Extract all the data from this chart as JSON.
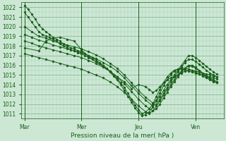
{
  "xlabel": "Pression niveau de la mer( hPa )",
  "bg_color": "#cce8d4",
  "grid_minor_color": "#aacfb8",
  "grid_major_color": "#88bb99",
  "line_color": "#1a5e1a",
  "ylim": [
    1010.5,
    1022.5
  ],
  "yticks": [
    1011,
    1012,
    1013,
    1014,
    1015,
    1016,
    1017,
    1018,
    1019,
    1020,
    1021,
    1022
  ],
  "day_labels": [
    "Mar",
    "Mer",
    "Jeu",
    "Ven"
  ],
  "day_positions": [
    0,
    96,
    192,
    288
  ],
  "xlim": [
    -5,
    335
  ],
  "lines": [
    [
      0,
      1021.5,
      6,
      1021.0,
      12,
      1020.5,
      18,
      1020.0,
      24,
      1019.5,
      30,
      1019.2,
      36,
      1019.0,
      42,
      1018.9,
      48,
      1018.7,
      54,
      1018.5,
      60,
      1018.2,
      66,
      1018.0,
      72,
      1017.8,
      78,
      1017.6,
      84,
      1017.5,
      90,
      1017.3,
      96,
      1017.2,
      102,
      1017.0,
      108,
      1016.8,
      114,
      1016.6,
      120,
      1016.4,
      126,
      1016.2,
      132,
      1016.0,
      138,
      1015.7,
      144,
      1015.4,
      150,
      1015.0,
      156,
      1014.6,
      162,
      1014.2,
      168,
      1013.7,
      174,
      1013.1,
      180,
      1012.5,
      186,
      1011.9,
      192,
      1011.4,
      198,
      1011.0,
      204,
      1011.2,
      210,
      1011.5,
      216,
      1012.0,
      222,
      1012.8,
      228,
      1013.5,
      234,
      1014.2,
      240,
      1014.8,
      246,
      1015.2,
      252,
      1015.5,
      258,
      1015.6,
      264,
      1015.6,
      270,
      1015.5,
      276,
      1015.4,
      282,
      1015.3,
      288,
      1015.2,
      294,
      1015.1,
      300,
      1015.0,
      306,
      1014.9,
      312,
      1014.8,
      318,
      1014.7,
      324,
      1014.6
    ],
    [
      0,
      1022.2,
      6,
      1021.8,
      12,
      1021.3,
      18,
      1020.8,
      24,
      1020.2,
      30,
      1019.8,
      36,
      1019.5,
      42,
      1019.2,
      48,
      1018.9,
      54,
      1018.7,
      60,
      1018.5,
      66,
      1018.2,
      72,
      1018.0,
      78,
      1017.8,
      84,
      1017.7,
      90,
      1017.5,
      96,
      1017.4,
      102,
      1017.2,
      108,
      1017.0,
      114,
      1016.8,
      120,
      1016.6,
      126,
      1016.3,
      132,
      1016.0,
      138,
      1015.7,
      144,
      1015.3,
      150,
      1014.9,
      156,
      1014.5,
      162,
      1014.0,
      168,
      1013.4,
      174,
      1012.8,
      180,
      1012.2,
      186,
      1011.6,
      192,
      1011.1,
      198,
      1010.8,
      204,
      1010.9,
      210,
      1011.2,
      216,
      1011.7,
      222,
      1012.4,
      228,
      1013.1,
      234,
      1013.9,
      240,
      1014.5,
      246,
      1015.0,
      252,
      1015.4,
      258,
      1015.6,
      264,
      1015.7,
      270,
      1015.7,
      276,
      1015.6,
      282,
      1015.5,
      288,
      1015.4,
      294,
      1015.3,
      300,
      1015.2,
      306,
      1015.1,
      312,
      1015.0,
      318,
      1014.9,
      324,
      1014.8
    ],
    [
      0,
      1020.0,
      12,
      1019.5,
      24,
      1019.0,
      36,
      1018.8,
      48,
      1018.5,
      60,
      1018.3,
      72,
      1018.1,
      84,
      1017.9,
      96,
      1017.7,
      108,
      1017.4,
      120,
      1017.1,
      132,
      1016.7,
      144,
      1016.2,
      156,
      1015.7,
      168,
      1015.0,
      180,
      1014.2,
      192,
      1013.4,
      204,
      1012.7,
      216,
      1012.1,
      222,
      1012.3,
      228,
      1012.8,
      234,
      1013.4,
      240,
      1014.0,
      246,
      1014.5,
      252,
      1015.0,
      258,
      1015.5,
      264,
      1016.0,
      270,
      1016.5,
      276,
      1017.0,
      282,
      1017.0,
      288,
      1016.8,
      294,
      1016.5,
      300,
      1016.2,
      306,
      1015.9,
      312,
      1015.6,
      318,
      1015.3,
      324,
      1015.1
    ],
    [
      0,
      1019.2,
      12,
      1018.9,
      24,
      1018.6,
      36,
      1018.4,
      48,
      1018.1,
      60,
      1017.9,
      72,
      1017.7,
      84,
      1017.5,
      96,
      1017.3,
      108,
      1017.0,
      120,
      1016.7,
      132,
      1016.3,
      144,
      1015.9,
      156,
      1015.4,
      168,
      1014.7,
      180,
      1013.9,
      192,
      1013.1,
      204,
      1012.4,
      216,
      1011.8,
      222,
      1012.0,
      228,
      1012.5,
      234,
      1013.1,
      240,
      1013.7,
      246,
      1014.3,
      252,
      1014.8,
      258,
      1015.3,
      264,
      1015.8,
      270,
      1016.3,
      276,
      1016.6,
      282,
      1016.6,
      288,
      1016.4,
      294,
      1016.1,
      300,
      1015.8,
      306,
      1015.5,
      312,
      1015.2,
      318,
      1015.0,
      324,
      1014.8
    ],
    [
      0,
      1018.5,
      12,
      1018.3,
      24,
      1018.0,
      36,
      1017.8,
      48,
      1017.6,
      60,
      1017.4,
      72,
      1017.2,
      84,
      1017.0,
      96,
      1016.8,
      108,
      1016.5,
      120,
      1016.2,
      132,
      1015.8,
      144,
      1015.4,
      156,
      1014.8,
      168,
      1014.1,
      180,
      1013.3,
      192,
      1012.5,
      204,
      1011.8,
      216,
      1011.3,
      222,
      1011.5,
      228,
      1012.0,
      234,
      1012.6,
      240,
      1013.2,
      246,
      1013.8,
      252,
      1014.3,
      258,
      1014.8,
      264,
      1015.3,
      270,
      1015.7,
      276,
      1016.0,
      282,
      1016.0,
      288,
      1015.8,
      294,
      1015.5,
      300,
      1015.2,
      306,
      1014.9,
      312,
      1014.7,
      318,
      1014.5,
      324,
      1014.3
    ],
    [
      0,
      1017.8,
      24,
      1017.5,
      36,
      1018.5,
      48,
      1018.8,
      60,
      1018.9,
      72,
      1018.7,
      84,
      1018.5,
      96,
      1017.6,
      108,
      1016.9,
      120,
      1016.4,
      132,
      1015.9,
      144,
      1015.4,
      156,
      1014.8,
      168,
      1014.3,
      180,
      1013.6,
      192,
      1014.0,
      204,
      1013.8,
      210,
      1013.5,
      216,
      1013.2,
      222,
      1013.4,
      228,
      1013.8,
      234,
      1014.2,
      240,
      1014.5,
      246,
      1014.7,
      252,
      1014.8,
      258,
      1015.0,
      264,
      1015.2,
      270,
      1015.4,
      276,
      1015.5,
      282,
      1015.5,
      288,
      1015.3,
      294,
      1015.1,
      300,
      1014.9,
      306,
      1014.7,
      312,
      1014.5,
      318,
      1014.3,
      324,
      1014.2
    ],
    [
      0,
      1017.2,
      12,
      1017.0,
      24,
      1016.8,
      36,
      1016.6,
      48,
      1016.4,
      60,
      1016.2,
      72,
      1016.0,
      84,
      1015.8,
      96,
      1015.6,
      108,
      1015.3,
      120,
      1015.0,
      132,
      1014.7,
      144,
      1014.3,
      156,
      1013.8,
      168,
      1013.2,
      180,
      1012.5,
      192,
      1011.8,
      204,
      1011.2,
      210,
      1011.0,
      216,
      1011.3,
      222,
      1011.8,
      228,
      1012.3,
      234,
      1012.9,
      240,
      1013.5,
      246,
      1014.0,
      252,
      1014.5,
      258,
      1015.0,
      264,
      1015.4,
      270,
      1015.7,
      276,
      1015.9,
      282,
      1015.9,
      288,
      1015.7,
      294,
      1015.4,
      300,
      1015.1,
      306,
      1014.8,
      312,
      1014.6,
      318,
      1014.4,
      324,
      1014.2
    ]
  ]
}
